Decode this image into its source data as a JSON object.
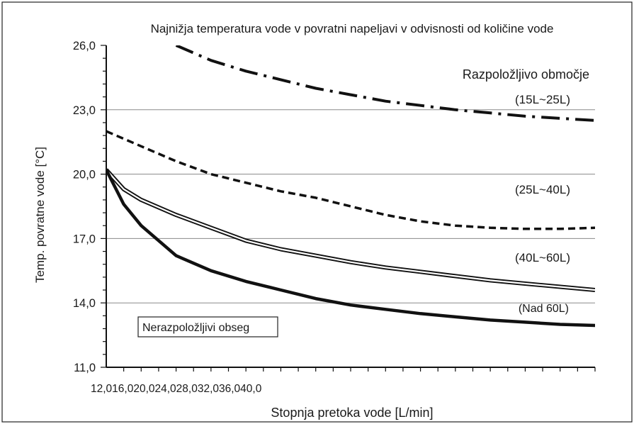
{
  "chart_data": {
    "type": "line",
    "title": "Najnižja temperatura vode v povratni napeljavi v odvisnosti od količine vode",
    "xlabel": "Stopnja pretoka vode [L/min]",
    "ylabel": "Temp. povratne vode [°C]",
    "x_tick_labels_text": "12,016,020,024,028,032,036,040,0",
    "x_ticks": [
      12,
      16,
      20,
      24,
      28,
      32,
      36,
      40
    ],
    "xlim": [
      12,
      40
    ],
    "y_ticks": [
      11.0,
      14.0,
      17.0,
      20.0,
      23.0,
      26.0
    ],
    "y_tick_labels": [
      "11,0",
      "14,0",
      "17,0",
      "20,0",
      "23,0",
      "26,0"
    ],
    "ylim": [
      11.0,
      26.0
    ],
    "grid": "horizontal",
    "legend_header": "Razpoložljivo območje",
    "unavailable_label": "Nerazpoložljivi obseg",
    "series": [
      {
        "name": "(15L~25L)",
        "style": "dash-dot",
        "x": [
          16.0,
          18,
          20,
          22,
          24,
          26,
          28,
          30,
          32,
          34,
          36,
          38,
          40
        ],
        "y": [
          26.0,
          25.3,
          24.8,
          24.4,
          24.0,
          23.7,
          23.4,
          23.2,
          23.0,
          22.85,
          22.7,
          22.6,
          22.5
        ]
      },
      {
        "name": "(25L~40L)",
        "style": "dashed",
        "x": [
          12,
          14,
          16,
          18,
          20,
          22,
          24,
          26,
          28,
          30,
          32,
          34,
          36,
          38,
          40
        ],
        "y": [
          22.0,
          21.3,
          20.6,
          20.0,
          19.6,
          19.2,
          18.9,
          18.5,
          18.1,
          17.8,
          17.6,
          17.5,
          17.45,
          17.45,
          17.5
        ]
      },
      {
        "name": "(40L~60L)",
        "style": "double",
        "x": [
          12,
          13,
          14,
          16,
          18,
          20,
          22,
          24,
          26,
          28,
          30,
          32,
          34,
          36,
          38,
          40
        ],
        "y": [
          20.2,
          19.3,
          18.8,
          18.1,
          17.5,
          16.9,
          16.5,
          16.2,
          15.9,
          15.65,
          15.45,
          15.25,
          15.05,
          14.9,
          14.75,
          14.6
        ]
      },
      {
        "name": "(Nad 60L)",
        "style": "bold",
        "x": [
          12,
          13,
          14,
          16,
          18,
          20,
          22,
          24,
          26,
          28,
          30,
          32,
          34,
          36,
          38,
          40
        ],
        "y": [
          20.2,
          18.6,
          17.6,
          16.2,
          15.5,
          15.0,
          14.6,
          14.2,
          13.9,
          13.7,
          13.5,
          13.35,
          13.2,
          13.1,
          13.0,
          12.95
        ]
      }
    ]
  },
  "colors": {
    "line": "#111111",
    "grid": "#8a8a8a",
    "background": "#ffffff"
  }
}
